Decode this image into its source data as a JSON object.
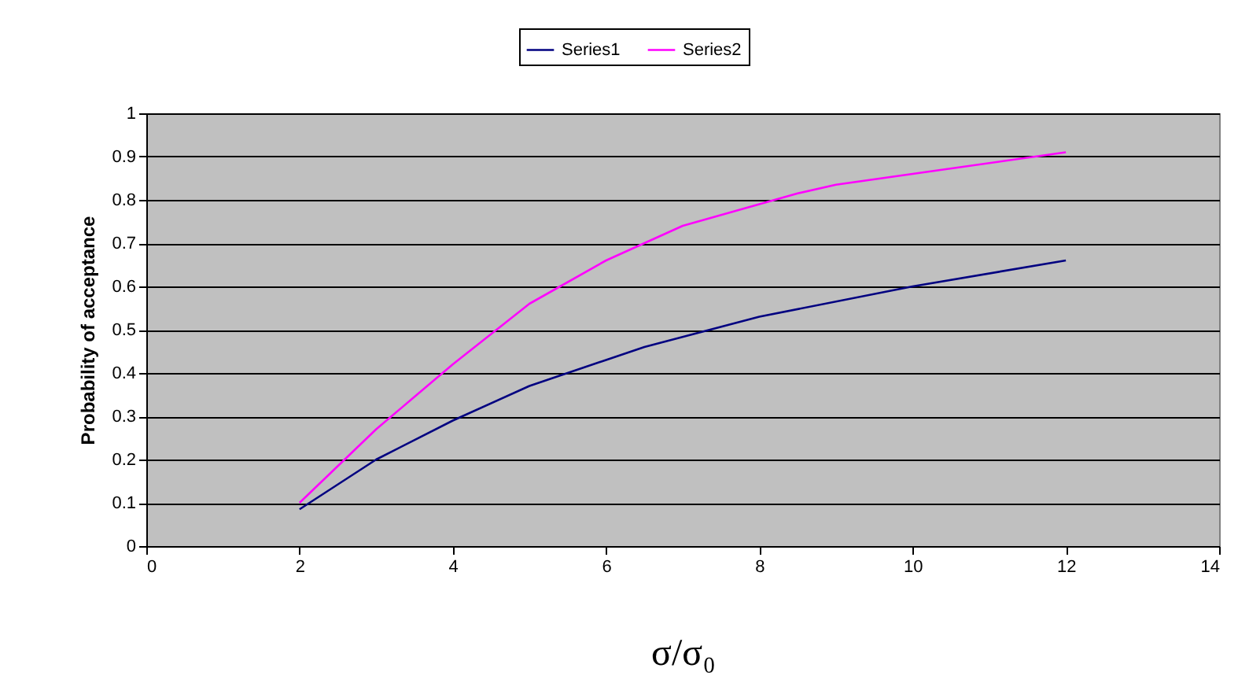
{
  "chart_data": {
    "type": "line",
    "xlabel": "σ/σ₀",
    "ylabel": "Probability of acceptance",
    "xlim": [
      0,
      14
    ],
    "xticks": [
      0,
      2,
      4,
      6,
      8,
      10,
      12,
      14
    ],
    "ylim": [
      0,
      1
    ],
    "yticks": [
      0,
      0.1,
      0.2,
      0.3,
      0.4,
      0.5,
      0.6,
      0.7,
      0.8,
      0.9,
      1
    ],
    "grid": "y",
    "legend": "top",
    "marker": "none",
    "line_style": "solid",
    "series": [
      {
        "name": "Series1",
        "color": "#000080",
        "x": [
          2,
          3,
          4,
          5,
          6,
          6.5,
          8,
          10,
          12
        ],
        "values": [
          0.085,
          0.2,
          0.29,
          0.37,
          0.43,
          0.46,
          0.53,
          0.6,
          0.66
        ]
      },
      {
        "name": "Series2",
        "color": "#ff00ff",
        "x": [
          2,
          3,
          4,
          5,
          6,
          6.5,
          7,
          8,
          8.5,
          9,
          10,
          12
        ],
        "values": [
          0.1,
          0.27,
          0.42,
          0.56,
          0.66,
          0.7,
          0.74,
          0.79,
          0.815,
          0.835,
          0.86,
          0.91
        ]
      }
    ]
  }
}
